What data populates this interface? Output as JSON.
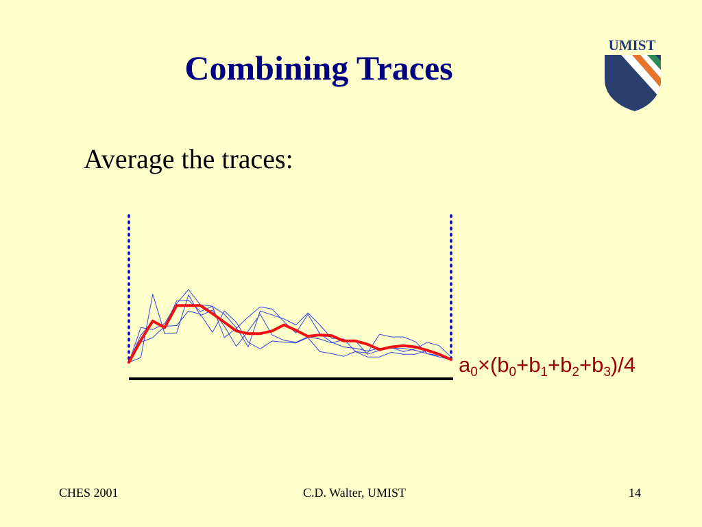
{
  "slide": {
    "title": "Combining Traces",
    "bullet": "Average the traces:"
  },
  "logo": {
    "text": "UMIST",
    "icon": "umist-shield-icon",
    "colors": {
      "shield": "#2b3f6e",
      "stripe_orange": "#e8742a",
      "stripe_green": "#2e8b57",
      "text": "#1f3a78"
    }
  },
  "formula": {
    "a": "a",
    "a_sub": "0",
    "times": "×(",
    "b0": "b",
    "b0_sub": "0",
    "plus1": "+",
    "b1": "b",
    "b1_sub": "1",
    "plus2": "+",
    "b2": "b",
    "b2_sub": "2",
    "plus3": "+",
    "b3": "b",
    "b3_sub": "3",
    "tail": ")/4"
  },
  "chart_data": {
    "type": "line",
    "title": "",
    "xlabel": "",
    "ylabel": "",
    "x": [
      0,
      1,
      2,
      3,
      4,
      5,
      6,
      7,
      8,
      9,
      10,
      11,
      12,
      13,
      14,
      15,
      16,
      17,
      18,
      19,
      20,
      21,
      22,
      23,
      24,
      25,
      26,
      27
    ],
    "series": [
      {
        "values": [
          0.0,
          0.3,
          0.37,
          0.54,
          0.55,
          0.77,
          0.72,
          0.45,
          0.77,
          0.6,
          0.3,
          0.2,
          0.32,
          0.3,
          0.29,
          0.37,
          0.16,
          0.13,
          0.09,
          0.16,
          0.08,
          0.08,
          0.15,
          0.12,
          0.12,
          0.18,
          0.12,
          0.04
        ],
        "color": "#3344dd",
        "width": 1
      },
      {
        "values": [
          0.0,
          0.07,
          1.02,
          0.43,
          0.44,
          1.01,
          0.7,
          0.78,
          0.54,
          0.24,
          0.47,
          0.72,
          0.41,
          0.33,
          0.3,
          0.38,
          0.35,
          0.29,
          0.34,
          0.32,
          0.12,
          0.18,
          0.22,
          0.16,
          0.2,
          0.3,
          0.25,
          0.08
        ],
        "color": "#3344dd",
        "width": 1
      },
      {
        "values": [
          0.0,
          0.52,
          0.49,
          0.58,
          0.88,
          1.09,
          0.86,
          0.84,
          0.72,
          0.52,
          0.23,
          0.77,
          0.71,
          0.65,
          0.56,
          0.74,
          0.56,
          0.36,
          0.35,
          0.16,
          0.14,
          0.42,
          0.38,
          0.38,
          0.31,
          0.13,
          0.08,
          0.04
        ],
        "color": "#3344dd",
        "width": 1
      },
      {
        "values": [
          0.0,
          0.41,
          0.6,
          0.53,
          0.92,
          0.93,
          0.76,
          0.84,
          0.37,
          0.51,
          0.68,
          0.83,
          0.8,
          0.61,
          0.44,
          0.72,
          0.43,
          0.3,
          0.23,
          0.21,
          0.17,
          0.21,
          0.21,
          0.21,
          0.18,
          0.13,
          0.1,
          0.04
        ],
        "color": "#3344dd",
        "width": 1
      },
      {
        "values": [
          0.0,
          0.33,
          0.62,
          0.52,
          0.85,
          0.85,
          0.85,
          0.73,
          0.6,
          0.47,
          0.43,
          0.43,
          0.47,
          0.56,
          0.48,
          0.39,
          0.41,
          0.4,
          0.32,
          0.32,
          0.27,
          0.19,
          0.23,
          0.25,
          0.23,
          0.18,
          0.12,
          0.04
        ],
        "color": "#ee1111",
        "width": 4
      }
    ],
    "ylim": [
      -0.25,
      2.2
    ],
    "grid": false,
    "legend": "none",
    "markers": {
      "left_bound_color": "#0000cc",
      "baseline_color": "#000000"
    }
  },
  "footer": {
    "left": "CHES 2001",
    "center": "C.D. Walter, UMIST",
    "right": "14"
  }
}
